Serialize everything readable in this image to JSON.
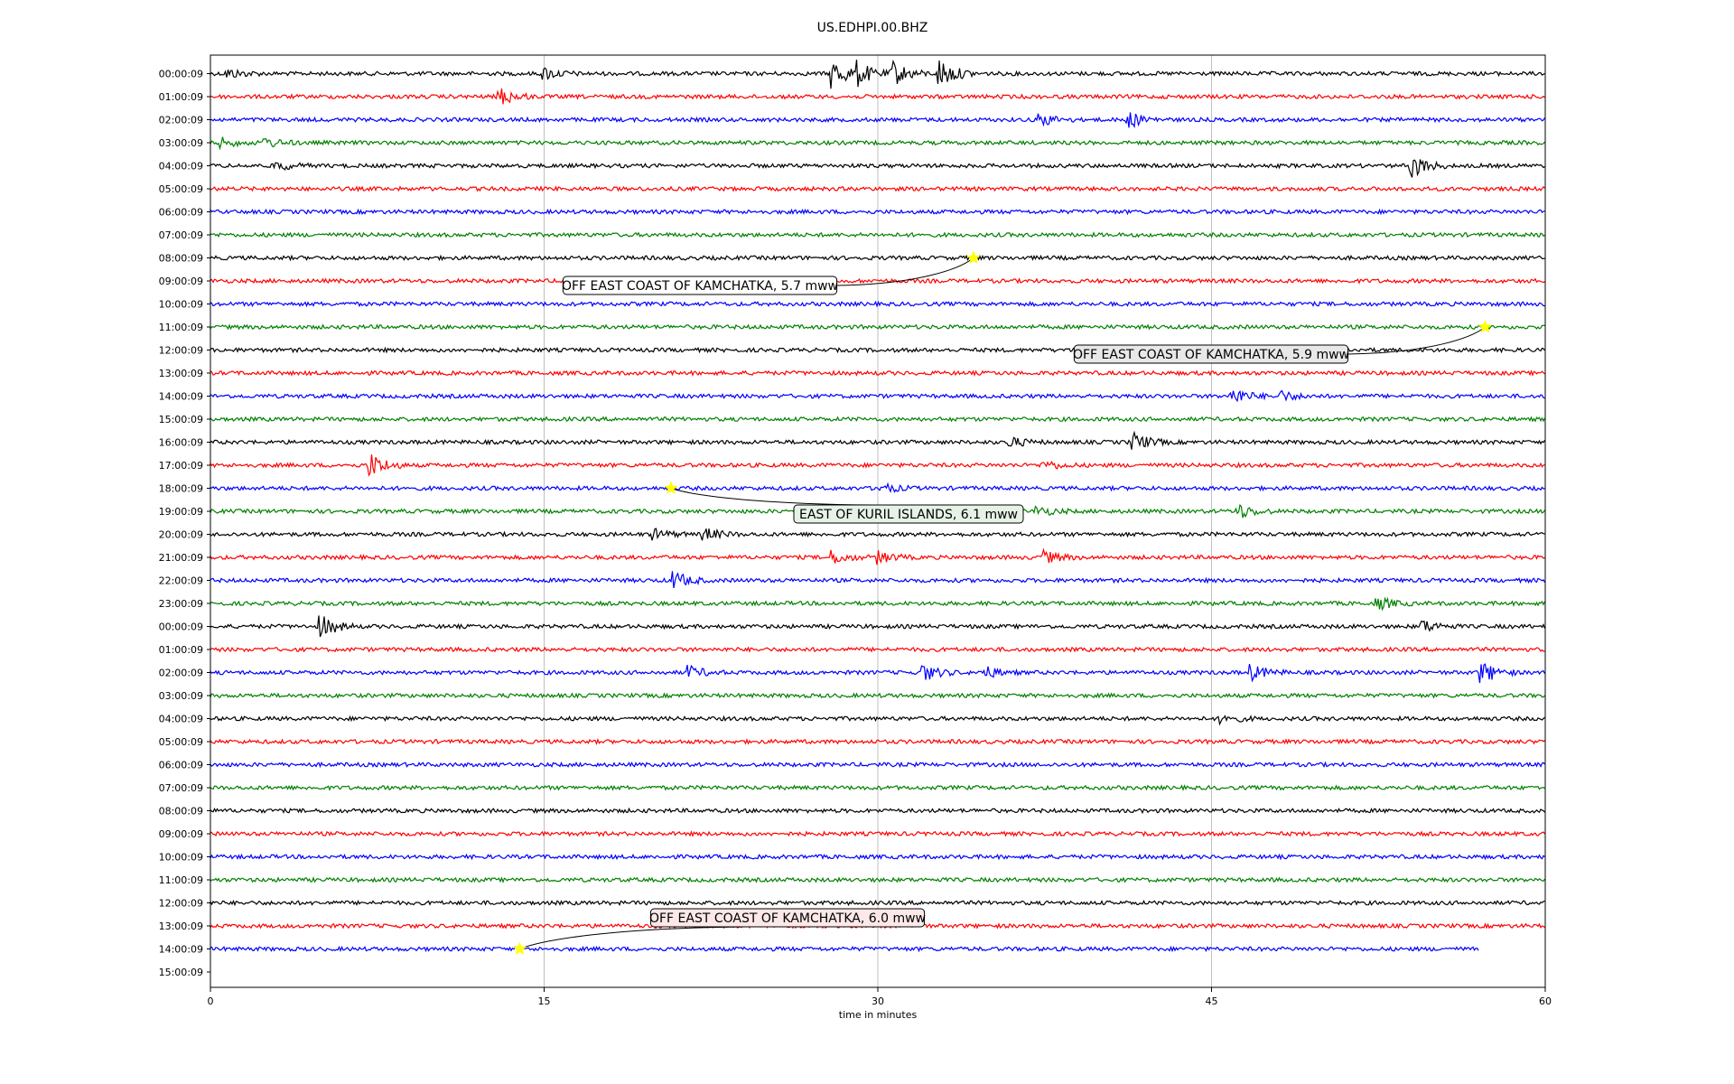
{
  "chart_data": {
    "type": "line",
    "title": "US.EDHPI.00.BHZ",
    "xlabel": "time in minutes",
    "ylabel": "",
    "xlim": [
      0,
      60
    ],
    "xticks": [
      0,
      15,
      30,
      45,
      60
    ],
    "grid": true,
    "color_cycle": [
      "#000000",
      "#ff0000",
      "#0000ff",
      "#008000"
    ],
    "rows": [
      "00:00:09",
      "01:00:09",
      "02:00:09",
      "03:00:09",
      "04:00:09",
      "05:00:09",
      "06:00:09",
      "07:00:09",
      "08:00:09",
      "09:00:09",
      "10:00:09",
      "11:00:09",
      "12:00:09",
      "13:00:09",
      "14:00:09",
      "15:00:09",
      "16:00:09",
      "17:00:09",
      "18:00:09",
      "19:00:09",
      "20:00:09",
      "21:00:09",
      "22:00:09",
      "23:00:09",
      "00:00:09",
      "01:00:09",
      "02:00:09",
      "03:00:09",
      "04:00:09",
      "05:00:09",
      "06:00:09",
      "07:00:09",
      "08:00:09",
      "09:00:09",
      "10:00:09",
      "11:00:09",
      "12:00:09",
      "13:00:09",
      "14:00:09",
      "15:00:09"
    ],
    "last_row_end_minute": 57,
    "events": [
      {
        "label": "OFF EAST COAST OF KAMCHATKA, 5.7 mww",
        "row": 8,
        "minute": 34.3,
        "fill": "#ffffff"
      },
      {
        "label": "OFF EAST COAST OF KAMCHATKA, 5.9 mww",
        "row": 11,
        "minute": 57.3,
        "fill": "#e8e8e8"
      },
      {
        "label": "EAST OF KURIL ISLANDS, 6.1 mww",
        "row": 18,
        "minute": 20.7,
        "fill": "#e6f2e6"
      },
      {
        "label": "OFF EAST COAST OF KAMCHATKA, 6.0 mww",
        "row": 38,
        "minute": 13.9,
        "fill": "#fce8e8"
      }
    ],
    "bursts": [
      {
        "row": 0,
        "minute": 28.0,
        "amp": 1.0
      },
      {
        "row": 0,
        "minute": 29.1,
        "amp": 0.7
      },
      {
        "row": 0,
        "minute": 30.7,
        "amp": 0.8
      },
      {
        "row": 0,
        "minute": 32.8,
        "amp": 1.0
      },
      {
        "row": 0,
        "minute": 15.0,
        "amp": 0.4
      },
      {
        "row": 0,
        "minute": 0.8,
        "amp": 0.3
      },
      {
        "row": 1,
        "minute": 13.0,
        "amp": 0.6
      },
      {
        "row": 2,
        "minute": 37.3,
        "amp": 0.4
      },
      {
        "row": 2,
        "minute": 41.3,
        "amp": 0.5
      },
      {
        "row": 3,
        "minute": 0.5,
        "amp": 0.3
      },
      {
        "row": 3,
        "minute": 2.5,
        "amp": 0.3
      },
      {
        "row": 4,
        "minute": 3.0,
        "amp": 0.3
      },
      {
        "row": 4,
        "minute": 54.0,
        "amp": 0.8
      },
      {
        "row": 14,
        "minute": 46.0,
        "amp": 0.5
      },
      {
        "row": 14,
        "minute": 48.0,
        "amp": 0.4
      },
      {
        "row": 16,
        "minute": 36.0,
        "amp": 0.3
      },
      {
        "row": 16,
        "minute": 41.5,
        "amp": 0.6
      },
      {
        "row": 17,
        "minute": 7.2,
        "amp": 0.8
      },
      {
        "row": 17,
        "minute": 37.5,
        "amp": 0.3
      },
      {
        "row": 18,
        "minute": 30.2,
        "amp": 0.3
      },
      {
        "row": 19,
        "minute": 46.2,
        "amp": 0.5
      },
      {
        "row": 19,
        "minute": 37.2,
        "amp": 0.3
      },
      {
        "row": 20,
        "minute": 20.0,
        "amp": 0.3
      },
      {
        "row": 20,
        "minute": 22.2,
        "amp": 0.4
      },
      {
        "row": 21,
        "minute": 28.0,
        "amp": 0.4
      },
      {
        "row": 21,
        "minute": 30.0,
        "amp": 0.4
      },
      {
        "row": 21,
        "minute": 37.5,
        "amp": 0.4
      },
      {
        "row": 22,
        "minute": 20.8,
        "amp": 0.6
      },
      {
        "row": 23,
        "minute": 52.5,
        "amp": 0.4
      },
      {
        "row": 24,
        "minute": 5.0,
        "amp": 0.7
      },
      {
        "row": 24,
        "minute": 54.5,
        "amp": 0.4
      },
      {
        "row": 26,
        "minute": 21.5,
        "amp": 0.4
      },
      {
        "row": 26,
        "minute": 32.0,
        "amp": 0.6
      },
      {
        "row": 26,
        "minute": 34.8,
        "amp": 0.4
      },
      {
        "row": 26,
        "minute": 46.8,
        "amp": 0.5
      },
      {
        "row": 26,
        "minute": 57.2,
        "amp": 0.7
      },
      {
        "row": 28,
        "minute": 45.5,
        "amp": 0.3
      }
    ]
  }
}
